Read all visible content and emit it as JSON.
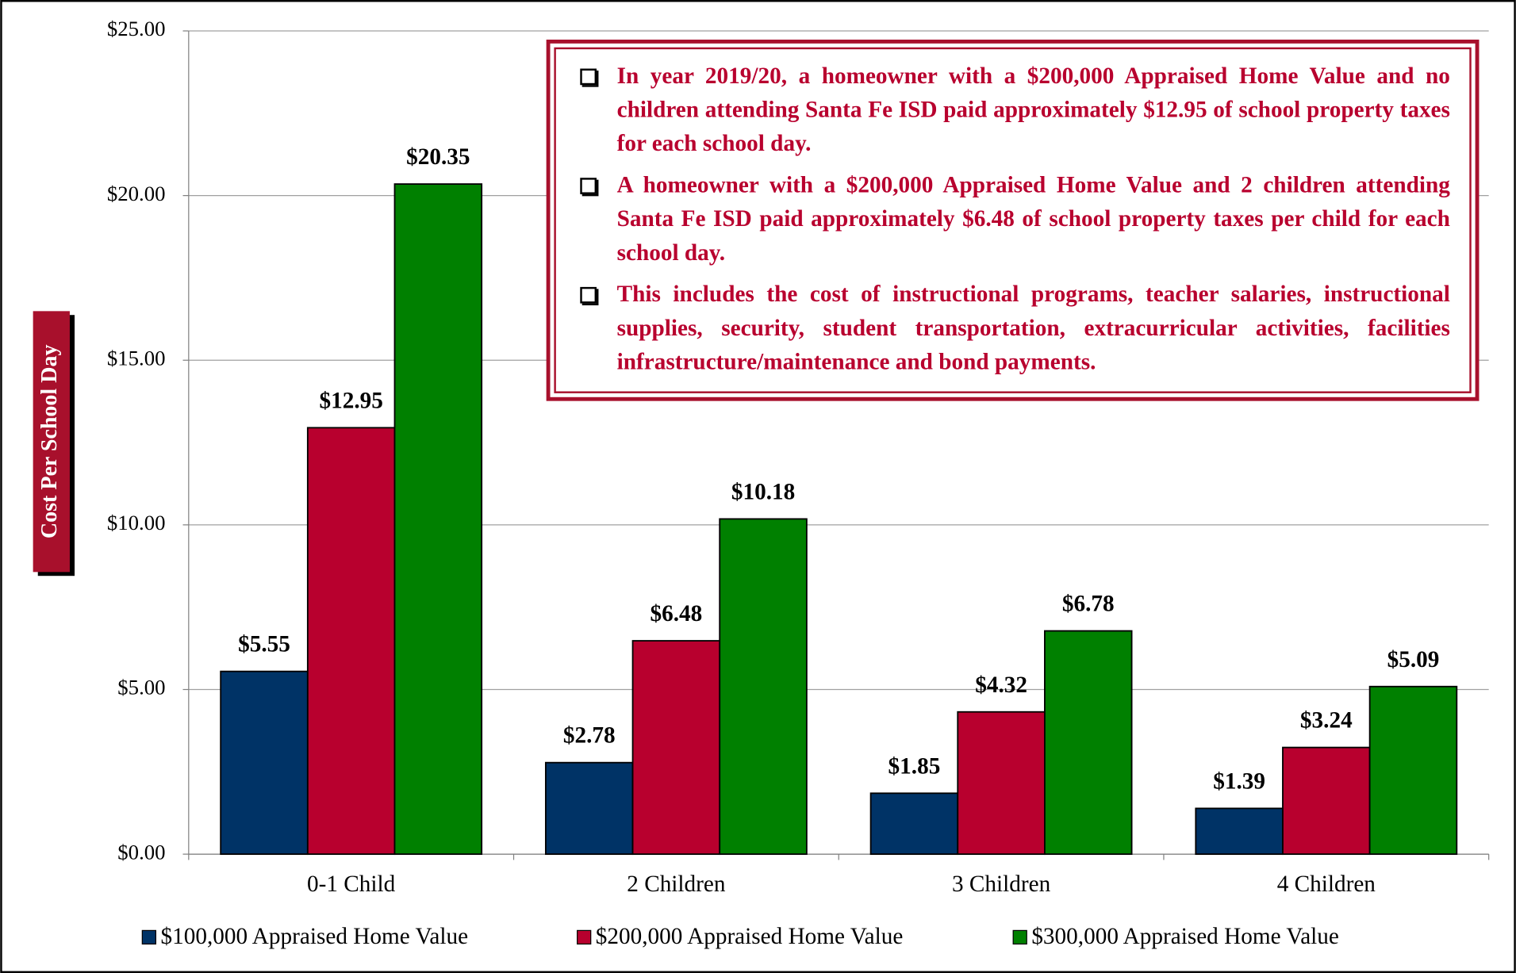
{
  "chart_data": {
    "type": "bar",
    "y_label": "Cost Per School Day",
    "categories": [
      "0-1 Child",
      "2 Children",
      "3 Children",
      "4 Children"
    ],
    "series": [
      {
        "name": "$100,000 Appraised Home Value",
        "color": "#003366",
        "values": [
          5.55,
          2.78,
          1.85,
          1.39
        ],
        "value_labels": [
          "$5.55",
          "$2.78",
          "$1.85",
          "$1.39"
        ]
      },
      {
        "name": "$200,000 Appraised Home Value",
        "color": "#b8002e",
        "values": [
          12.95,
          6.48,
          4.32,
          3.24
        ],
        "value_labels": [
          "$12.95",
          "$6.48",
          "$4.32",
          "$3.24"
        ]
      },
      {
        "name": "$300,000 Appraised Home Value",
        "color": "#008000",
        "values": [
          20.35,
          10.18,
          6.78,
          5.09
        ],
        "value_labels": [
          "$20.35",
          "$10.18",
          "$6.78",
          "$5.09"
        ]
      }
    ],
    "ylim": [
      0,
      25
    ],
    "yticks": [
      {
        "value": 0,
        "label": "$0.00"
      },
      {
        "value": 5,
        "label": "$5.00"
      },
      {
        "value": 10,
        "label": "$10.00"
      },
      {
        "value": 15,
        "label": "$15.00"
      },
      {
        "value": 20,
        "label": "$20.00"
      },
      {
        "value": 25,
        "label": "$25.00"
      }
    ],
    "grid": true,
    "legend": "bottom",
    "annotations": [
      "In year 2019/20, a homeowner with a $200,000 Appraised Home Value and no children attending Santa Fe ISD paid approximately $12.95 of school property taxes for each school day.",
      "A homeowner with a $200,000 Appraised Home Value and 2 children attending Santa Fe ISD paid approximately $6.48 of school property taxes per child for each school day.",
      "This includes the cost of instructional programs, teacher salaries, instructional supplies, security, student transportation, extracurricular activities, facilities infrastructure/maintenance and bond payments."
    ]
  }
}
